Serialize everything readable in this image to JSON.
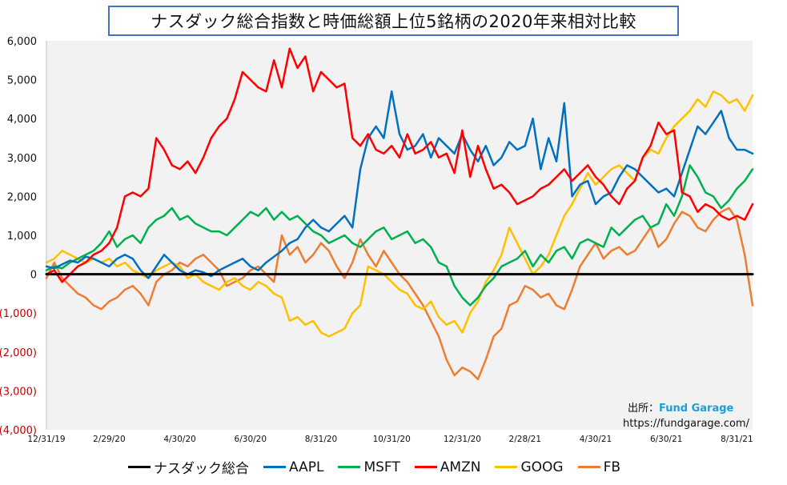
{
  "chart_data": {
    "type": "line",
    "title": "ナスダック総合指数と時価総額上位5銘柄の2020年来相対比較",
    "xlabel": "",
    "ylabel": "",
    "ylim": [
      -4000,
      6000
    ],
    "xlim": [
      0,
      90
    ],
    "grid": false,
    "legend": "bottom",
    "x_tick_values": [
      0,
      8,
      17,
      26,
      35,
      44,
      53,
      61,
      70,
      79,
      88
    ],
    "x_tick_labels": [
      "12/31/19",
      "2/29/20",
      "4/30/20",
      "6/30/20",
      "8/31/20",
      "10/31/20",
      "12/31/20",
      "2/28/21",
      "4/30/21",
      "6/30/21",
      "8/31/21"
    ],
    "y_ticks": [
      6000,
      5000,
      4000,
      3000,
      2000,
      1000,
      0,
      -1000,
      -2000,
      -3000,
      -4000
    ],
    "y_tick_labels": [
      "6,000",
      "5,000",
      "4,000",
      "3,000",
      "2,000",
      "1,000",
      "0",
      "(1,000)",
      "(2,000)",
      "(3,000)",
      "(4,000)"
    ],
    "negative_tick_color": "#c00000",
    "series": [
      {
        "name": "ナスダック総合",
        "color": "#000000",
        "width": 3,
        "values": [
          0,
          0,
          0,
          0,
          0,
          0,
          0,
          0,
          0,
          0,
          0,
          0,
          0,
          0,
          0,
          0,
          0,
          0,
          0,
          0,
          0,
          0,
          0,
          0,
          0,
          0,
          0,
          0,
          0,
          0,
          0,
          0,
          0,
          0,
          0,
          0,
          0,
          0,
          0,
          0,
          0,
          0,
          0,
          0,
          0,
          0,
          0,
          0,
          0,
          0,
          0,
          0,
          0,
          0,
          0,
          0,
          0,
          0,
          0,
          0,
          0,
          0,
          0,
          0,
          0,
          0,
          0,
          0,
          0,
          0,
          0,
          0,
          0,
          0,
          0,
          0,
          0,
          0,
          0,
          0,
          0,
          0,
          0,
          0,
          0,
          0,
          0,
          0,
          0,
          0,
          0
        ]
      },
      {
        "name": "AAPL",
        "color": "#0070c0",
        "width": 2.5,
        "values": [
          200,
          150,
          250,
          350,
          300,
          450,
          400,
          300,
          200,
          400,
          500,
          400,
          100,
          -100,
          200,
          500,
          300,
          100,
          0,
          100,
          50,
          -50,
          100,
          200,
          300,
          400,
          200,
          100,
          300,
          450,
          600,
          800,
          900,
          1200,
          1400,
          1200,
          1100,
          1300,
          1500,
          1200,
          2700,
          3500,
          3800,
          3500,
          4700,
          3600,
          3200,
          3300,
          3600,
          3000,
          3500,
          3300,
          3100,
          3600,
          3200,
          2900,
          3300,
          2800,
          3000,
          3400,
          3200,
          3300,
          4000,
          2700,
          3500,
          2900,
          4400,
          2000,
          2300,
          2400,
          1800,
          2000,
          2100,
          2500,
          2800,
          2700,
          2500,
          2300,
          2100,
          2200,
          2000,
          2600,
          3200,
          3800,
          3600,
          3900,
          4200,
          3500,
          3200,
          3200,
          3100
        ]
      },
      {
        "name": "MSFT",
        "color": "#00b050",
        "width": 2.5,
        "values": [
          100,
          200,
          150,
          300,
          400,
          500,
          600,
          800,
          1100,
          700,
          900,
          1000,
          800,
          1200,
          1400,
          1500,
          1700,
          1400,
          1500,
          1300,
          1200,
          1100,
          1100,
          1000,
          1200,
          1400,
          1600,
          1500,
          1700,
          1400,
          1600,
          1400,
          1500,
          1300,
          1100,
          1000,
          800,
          900,
          1000,
          800,
          700,
          900,
          1100,
          1200,
          900,
          1000,
          1100,
          800,
          900,
          700,
          300,
          200,
          -300,
          -600,
          -800,
          -600,
          -300,
          -100,
          200,
          300,
          400,
          600,
          200,
          500,
          300,
          600,
          700,
          400,
          800,
          900,
          800,
          700,
          1200,
          1000,
          1200,
          1400,
          1500,
          1200,
          1300,
          1800,
          1500,
          2000,
          2800,
          2500,
          2100,
          2000,
          1700,
          1900,
          2200,
          2400,
          2700
        ]
      },
      {
        "name": "AMZN",
        "color": "#ff0000",
        "width": 2.5,
        "values": [
          0,
          100,
          -200,
          0,
          200,
          300,
          500,
          600,
          800,
          1200,
          2000,
          2100,
          2000,
          2200,
          3500,
          3200,
          2800,
          2700,
          2900,
          2600,
          3000,
          3500,
          3800,
          4000,
          4500,
          5200,
          5000,
          4800,
          4700,
          5500,
          4800,
          5800,
          5300,
          5600,
          4700,
          5200,
          5000,
          4800,
          4900,
          3500,
          3300,
          3600,
          3200,
          3100,
          3300,
          3000,
          3600,
          3100,
          3200,
          3400,
          3000,
          3100,
          2600,
          3700,
          2500,
          3300,
          2700,
          2200,
          2300,
          2100,
          1800,
          1900,
          2000,
          2200,
          2300,
          2500,
          2700,
          2400,
          2600,
          2800,
          2500,
          2300,
          2000,
          1800,
          2200,
          2400,
          3000,
          3300,
          3900,
          3600,
          3700,
          2100,
          2000,
          1600,
          1800,
          1700,
          1500,
          1400,
          1500,
          1400,
          1800
        ]
      },
      {
        "name": "GOOG",
        "color": "#ffc000",
        "width": 2.5,
        "values": [
          300,
          400,
          600,
          500,
          400,
          300,
          400,
          300,
          400,
          200,
          300,
          100,
          0,
          -100,
          100,
          200,
          300,
          200,
          -100,
          0,
          -200,
          -300,
          -400,
          -200,
          -100,
          -300,
          -400,
          -200,
          -300,
          -500,
          -600,
          -1200,
          -1100,
          -1300,
          -1200,
          -1500,
          -1600,
          -1500,
          -1400,
          -1000,
          -800,
          200,
          100,
          0,
          -200,
          -400,
          -500,
          -800,
          -900,
          -700,
          -1100,
          -1300,
          -1200,
          -1500,
          -1000,
          -700,
          -200,
          100,
          500,
          1200,
          800,
          400,
          0,
          200,
          500,
          1000,
          1500,
          1800,
          2200,
          2600,
          2300,
          2500,
          2700,
          2800,
          2600,
          2400,
          3000,
          3200,
          3100,
          3500,
          3800,
          4000,
          4200,
          4500,
          4300,
          4700,
          4600,
          4400,
          4500,
          4200,
          4600
        ]
      },
      {
        "name": "FB",
        "color": "#ed7d31",
        "width": 2.5,
        "values": [
          -100,
          300,
          -100,
          -300,
          -500,
          -600,
          -800,
          -900,
          -700,
          -600,
          -400,
          -300,
          -500,
          -800,
          -200,
          0,
          100,
          300,
          200,
          400,
          500,
          300,
          100,
          -300,
          -200,
          -100,
          100,
          200,
          0,
          -200,
          1000,
          500,
          700,
          300,
          500,
          800,
          600,
          200,
          -100,
          300,
          900,
          500,
          200,
          600,
          300,
          0,
          -200,
          -500,
          -800,
          -1200,
          -1600,
          -2200,
          -2600,
          -2400,
          -2500,
          -2700,
          -2200,
          -1600,
          -1400,
          -800,
          -700,
          -300,
          -400,
          -600,
          -500,
          -800,
          -900,
          -400,
          200,
          500,
          800,
          400,
          600,
          700,
          500,
          600,
          900,
          1200,
          700,
          900,
          1300,
          1600,
          1500,
          1200,
          1100,
          1400,
          1600,
          1700,
          1400,
          500,
          -800
        ]
      }
    ]
  },
  "source": {
    "label": "出所：",
    "brand": "Fund Garage",
    "url": "https://fundgarage.com/"
  }
}
